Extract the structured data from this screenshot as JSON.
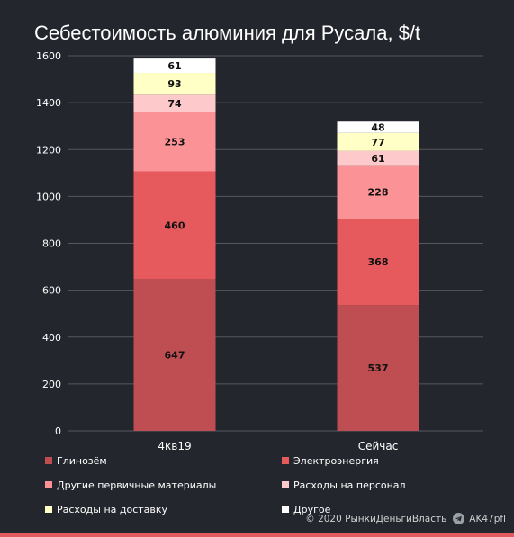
{
  "chart_data": {
    "type": "bar",
    "stacked": true,
    "title": "Себестоимость алюминия для Русала, $/t",
    "categories": [
      "4кв19",
      "Сейчас"
    ],
    "series": [
      {
        "name": "Глинозём",
        "color": "#bf4e52",
        "values": [
          647,
          537
        ]
      },
      {
        "name": "Электроэнергия",
        "color": "#e65a5e",
        "values": [
          460,
          368
        ]
      },
      {
        "name": "Другие первичные материалы",
        "color": "#fb9295",
        "values": [
          253,
          228
        ]
      },
      {
        "name": "Расходы на персонал",
        "color": "#fec9cb",
        "values": [
          74,
          61
        ]
      },
      {
        "name": "Расходы на доставку",
        "color": "#ffffc6",
        "values": [
          93,
          77
        ]
      },
      {
        "name": "Другое",
        "color": "#ffffff",
        "values": [
          61,
          48
        ]
      }
    ],
    "ylim": [
      0,
      1600
    ],
    "yticks": [
      0,
      200,
      400,
      600,
      800,
      1000,
      1200,
      1400,
      1600
    ],
    "grid": true,
    "legend_position": "bottom"
  },
  "footer": {
    "copyright": "© 2020",
    "brand": "РынкиДеньгиВласть",
    "handle": "AK47pfl"
  }
}
